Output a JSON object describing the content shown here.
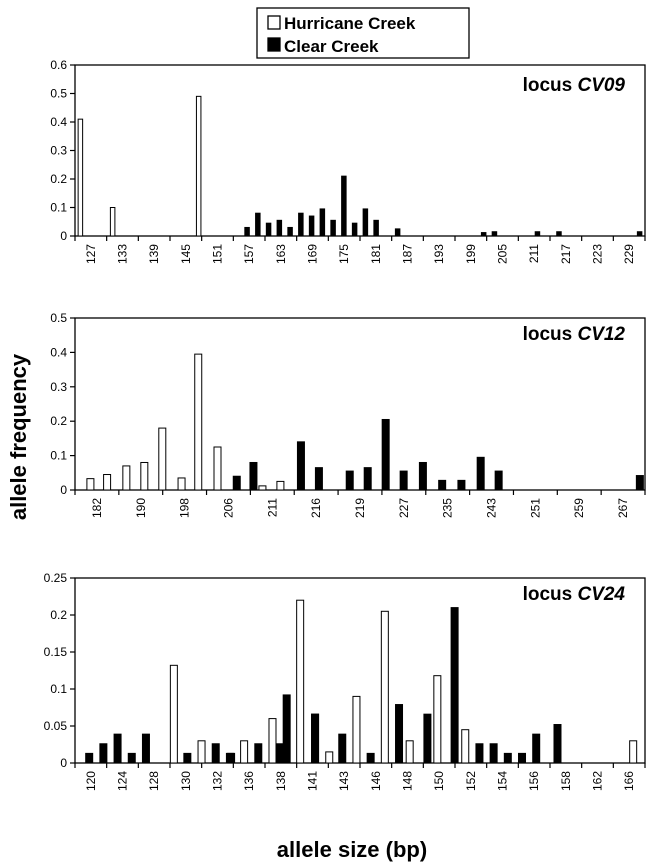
{
  "figure": {
    "ylabel": "allele frequency",
    "xlabel": "allele size (bp)"
  },
  "legend": {
    "items": [
      {
        "label": "Hurricane Creek",
        "color": "#ffffff"
      },
      {
        "label": "Clear Creek",
        "color": "#000000"
      }
    ]
  },
  "chart_data": [
    {
      "type": "bar",
      "locus_prefix": "locus ",
      "locus_name": "CV09",
      "ylim": [
        0,
        0.6
      ],
      "yticks": [
        "0",
        "0.1",
        "0.2",
        "0.3",
        "0.4",
        "0.5",
        "0.6"
      ],
      "xlim": [
        126,
        232
      ],
      "xticks": [
        "127",
        "133",
        "139",
        "145",
        "151",
        "157",
        "163",
        "169",
        "175",
        "181",
        "187",
        "193",
        "199",
        "205",
        "211",
        "217",
        "223",
        "229"
      ],
      "series": [
        {
          "name": "Hurricane Creek",
          "color": "#ffffff",
          "points": [
            [
              127,
              0.41
            ],
            [
              133,
              0.1
            ],
            [
              149,
              0.49
            ]
          ]
        },
        {
          "name": "Clear Creek",
          "color": "#000000",
          "points": [
            [
              158,
              0.03
            ],
            [
              160,
              0.08
            ],
            [
              162,
              0.045
            ],
            [
              164,
              0.055
            ],
            [
              166,
              0.03
            ],
            [
              168,
              0.08
            ],
            [
              170,
              0.07
            ],
            [
              172,
              0.095
            ],
            [
              174,
              0.055
            ],
            [
              176,
              0.21
            ],
            [
              178,
              0.045
            ],
            [
              180,
              0.095
            ],
            [
              182,
              0.055
            ],
            [
              186,
              0.025
            ],
            [
              202,
              0.012
            ],
            [
              204,
              0.015
            ],
            [
              212,
              0.015
            ],
            [
              216,
              0.015
            ],
            [
              231,
              0.015
            ]
          ]
        }
      ]
    },
    {
      "type": "bar",
      "locus_prefix": "locus ",
      "locus_name": "CV12",
      "ylim": [
        0,
        0.5
      ],
      "yticks": [
        "0",
        "0.1",
        "0.2",
        "0.3",
        "0.4",
        "0.5"
      ],
      "xlim": [
        0.4,
        22.6
      ],
      "xticks": [
        "182",
        "190",
        "198",
        "206",
        "211",
        "216",
        "219",
        "227",
        "235",
        "243",
        "251",
        "259",
        "267"
      ],
      "series": [
        {
          "name": "Hurricane Creek",
          "color": "#ffffff",
          "points": [
            [
              1,
              0.033
            ],
            [
              1.65,
              0.045
            ],
            [
              2.4,
              0.07
            ],
            [
              3.1,
              0.08
            ],
            [
              3.8,
              0.18
            ],
            [
              4.55,
              0.035
            ],
            [
              5.2,
              0.395
            ],
            [
              5.95,
              0.125
            ],
            [
              7.7,
              0.012
            ],
            [
              8.4,
              0.025
            ]
          ]
        },
        {
          "name": "Clear Creek",
          "color": "#000000",
          "points": [
            [
              6.7,
              0.04
            ],
            [
              7.35,
              0.08
            ],
            [
              9.2,
              0.14
            ],
            [
              9.9,
              0.065
            ],
            [
              11.1,
              0.055
            ],
            [
              11.8,
              0.065
            ],
            [
              12.5,
              0.205
            ],
            [
              13.2,
              0.055
            ],
            [
              13.95,
              0.08
            ],
            [
              14.7,
              0.028
            ],
            [
              15.45,
              0.028
            ],
            [
              16.2,
              0.095
            ],
            [
              16.9,
              0.055
            ],
            [
              22.4,
              0.042
            ]
          ]
        }
      ]
    },
    {
      "type": "bar",
      "locus_prefix": "locus ",
      "locus_name": "CV24",
      "ylim": [
        0,
        0.25
      ],
      "yticks": [
        "0",
        "0.05",
        "0.1",
        "0.15",
        "0.2",
        "0.25"
      ],
      "xlim": [
        0.4,
        24.5
      ],
      "xticks": [
        "120",
        "124",
        "128",
        "130",
        "132",
        "136",
        "138",
        "141",
        "143",
        "146",
        "148",
        "150",
        "152",
        "154",
        "156",
        "158",
        "162",
        "166"
      ],
      "series": [
        {
          "name": "Hurricane Creek",
          "color": "#ffffff",
          "points": [
            [
              4.58,
              0.132
            ],
            [
              5.75,
              0.03
            ],
            [
              7.55,
              0.03
            ],
            [
              8.75,
              0.06
            ],
            [
              9.92,
              0.22
            ],
            [
              11.15,
              0.015
            ],
            [
              12.3,
              0.09
            ],
            [
              13.5,
              0.205
            ],
            [
              14.55,
              0.03
            ],
            [
              15.72,
              0.118
            ],
            [
              16.9,
              0.045
            ],
            [
              24.0,
              0.03
            ]
          ]
        },
        {
          "name": "Clear Creek",
          "color": "#000000",
          "points": [
            [
              1,
              0.013
            ],
            [
              1.6,
              0.026
            ],
            [
              2.2,
              0.039
            ],
            [
              2.8,
              0.013
            ],
            [
              3.4,
              0.039
            ],
            [
              5.15,
              0.013
            ],
            [
              6.35,
              0.026
            ],
            [
              6.95,
              0.013
            ],
            [
              7.0,
              0.013
            ],
            [
              8.15,
              0.026
            ],
            [
              9.35,
              0.092
            ],
            [
              9.05,
              0.026
            ],
            [
              10.55,
              0.066
            ],
            [
              10.55,
              0.066
            ],
            [
              11.7,
              0.039
            ],
            [
              12.9,
              0.013
            ],
            [
              14.1,
              0.079
            ],
            [
              15.3,
              0.066
            ],
            [
              16.45,
              0.21
            ],
            [
              17.5,
              0.026
            ],
            [
              18.1,
              0.026
            ],
            [
              18.7,
              0.013
            ],
            [
              19.3,
              0.013
            ],
            [
              19.9,
              0.039
            ],
            [
              20.8,
              0.052
            ]
          ]
        }
      ]
    }
  ]
}
